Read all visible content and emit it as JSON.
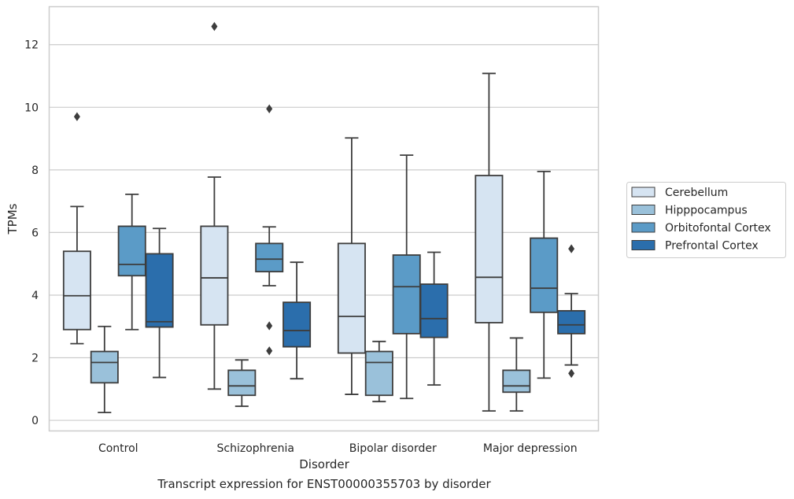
{
  "caption": "Transcript expression for ENST00000355703 by disorder",
  "chart_data": {
    "type": "boxplot",
    "xlabel": "Disorder",
    "ylabel": "TPMs",
    "ylim": [
      -0.35,
      13.2
    ],
    "yticks": [
      0,
      2,
      4,
      6,
      8,
      10,
      12
    ],
    "grid": "horizontal",
    "legend_position": "right",
    "categories": [
      "Control",
      "Schizophrenia",
      "Bipolar disorder",
      "Major depression"
    ],
    "series": [
      {
        "name": "Cerebellum",
        "color": "#d6e4f2",
        "boxes": [
          {
            "whislo": 2.45,
            "q1": 2.9,
            "med": 3.98,
            "q3": 5.4,
            "whishi": 6.83,
            "fliers": [
              9.7
            ]
          },
          {
            "whislo": 1.0,
            "q1": 3.05,
            "med": 4.55,
            "q3": 6.2,
            "whishi": 7.77,
            "fliers": [
              12.58
            ]
          },
          {
            "whislo": 0.83,
            "q1": 2.15,
            "med": 3.32,
            "q3": 5.65,
            "whishi": 9.02,
            "fliers": []
          },
          {
            "whislo": 0.3,
            "q1": 3.12,
            "med": 4.57,
            "q3": 7.82,
            "whishi": 11.08,
            "fliers": []
          }
        ]
      },
      {
        "name": "Hipppocampus",
        "color": "#9ac1da",
        "boxes": [
          {
            "whislo": 0.25,
            "q1": 1.2,
            "med": 1.85,
            "q3": 2.2,
            "whishi": 3.0,
            "fliers": []
          },
          {
            "whislo": 0.45,
            "q1": 0.8,
            "med": 1.1,
            "q3": 1.6,
            "whishi": 1.93,
            "fliers": []
          },
          {
            "whislo": 0.6,
            "q1": 0.8,
            "med": 1.85,
            "q3": 2.2,
            "whishi": 2.52,
            "fliers": []
          },
          {
            "whislo": 0.3,
            "q1": 0.9,
            "med": 1.1,
            "q3": 1.6,
            "whishi": 2.63,
            "fliers": []
          }
        ]
      },
      {
        "name": "Orbitofontal Cortex",
        "color": "#5b9bc7",
        "boxes": [
          {
            "whislo": 2.9,
            "q1": 4.62,
            "med": 4.98,
            "q3": 6.2,
            "whishi": 7.22,
            "fliers": []
          },
          {
            "whislo": 4.3,
            "q1": 4.75,
            "med": 5.15,
            "q3": 5.65,
            "whishi": 6.18,
            "fliers": [
              9.95,
              3.02,
              2.22
            ]
          },
          {
            "whislo": 0.7,
            "q1": 2.77,
            "med": 4.27,
            "q3": 5.28,
            "whishi": 8.47,
            "fliers": []
          },
          {
            "whislo": 1.35,
            "q1": 3.45,
            "med": 4.22,
            "q3": 5.82,
            "whishi": 7.95,
            "fliers": []
          }
        ]
      },
      {
        "name": "Prefrontal Cortex",
        "color": "#2b6eac",
        "boxes": [
          {
            "whislo": 1.37,
            "q1": 2.98,
            "med": 3.15,
            "q3": 5.32,
            "whishi": 6.13,
            "fliers": []
          },
          {
            "whislo": 1.33,
            "q1": 2.35,
            "med": 2.87,
            "q3": 3.77,
            "whishi": 5.05,
            "fliers": []
          },
          {
            "whislo": 1.13,
            "q1": 2.65,
            "med": 3.25,
            "q3": 4.35,
            "whishi": 5.37,
            "fliers": []
          },
          {
            "whislo": 1.77,
            "q1": 2.77,
            "med": 3.05,
            "q3": 3.5,
            "whishi": 4.05,
            "fliers": [
              5.48,
              1.5
            ]
          }
        ]
      }
    ]
  }
}
